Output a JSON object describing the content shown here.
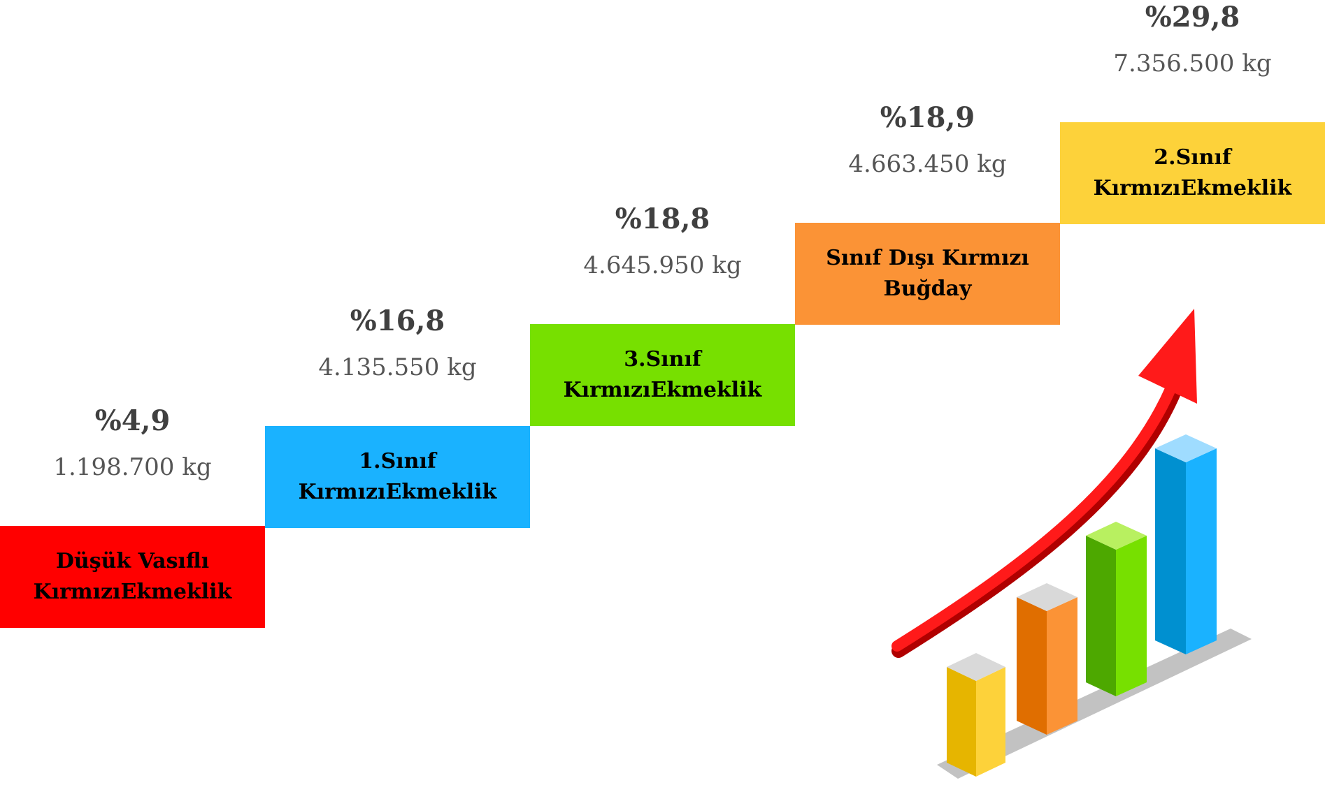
{
  "steps": [
    {
      "lines": [
        "Düşük Vasıflı",
        "KırmızıEkmeklik"
      ],
      "percent": "%4,9",
      "weight": "1.198.700 kg",
      "color": "#ff0000"
    },
    {
      "lines": [
        "1.Sınıf",
        "KırmızıEkmeklik"
      ],
      "percent": "%16,8",
      "weight": "4.135.550 kg",
      "color": "#1ab2ff"
    },
    {
      "lines": [
        "3.Sınıf",
        "KırmızıEkmeklik"
      ],
      "percent": "%18,8",
      "weight": "4.645.950 kg",
      "color": "#77e000"
    },
    {
      "lines": [
        "Sınıf Dışı Kırmızı",
        "Buğday"
      ],
      "percent": "%18,9",
      "weight": "4.663.450 kg",
      "color": "#fb9336"
    },
    {
      "lines": [
        "2.Sınıf",
        "KırmızıEkmeklik"
      ],
      "percent": "%29,8",
      "weight": "7.356.500 kg",
      "color": "#fdd23a"
    }
  ]
}
